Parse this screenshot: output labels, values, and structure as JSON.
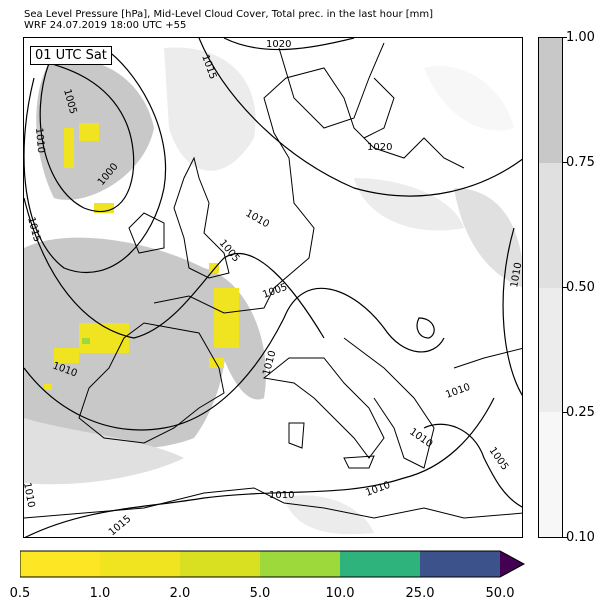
{
  "header": {
    "title_line1": "Sea Level Pressure [hPa], Mid-Level Cloud Cover, Total prec. in the last hour [mm]",
    "title_line2": "WRF 24.07.2019 18:00 UTC +55"
  },
  "map": {
    "time_label": "01 UTC Sat",
    "isobar_labels": [
      "1020",
      "1015",
      "1005",
      "1010",
      "1000",
      "1015",
      "1010",
      "1005",
      "1005",
      "1020",
      "1010",
      "1010",
      "1010",
      "1010",
      "1010",
      "1005",
      "1010",
      "1010",
      "1010",
      "1015"
    ]
  },
  "cloud_colorbar": {
    "ticks": [
      "1.00",
      "0.75",
      "0.50",
      "0.25",
      "0.10"
    ],
    "colors": [
      "#c8c8c8",
      "#e0e0e0",
      "#ececec",
      "#f7f7f7"
    ]
  },
  "precip_colorbar": {
    "ticks": [
      "0.5",
      "1.0",
      "2.0",
      "5.0",
      "10.0",
      "25.0",
      "50.0"
    ],
    "colors": [
      "#fde725",
      "#f0e31f",
      "#d9e021",
      "#9dd93b",
      "#2eb37c",
      "#3b528b",
      "#440154"
    ]
  }
}
